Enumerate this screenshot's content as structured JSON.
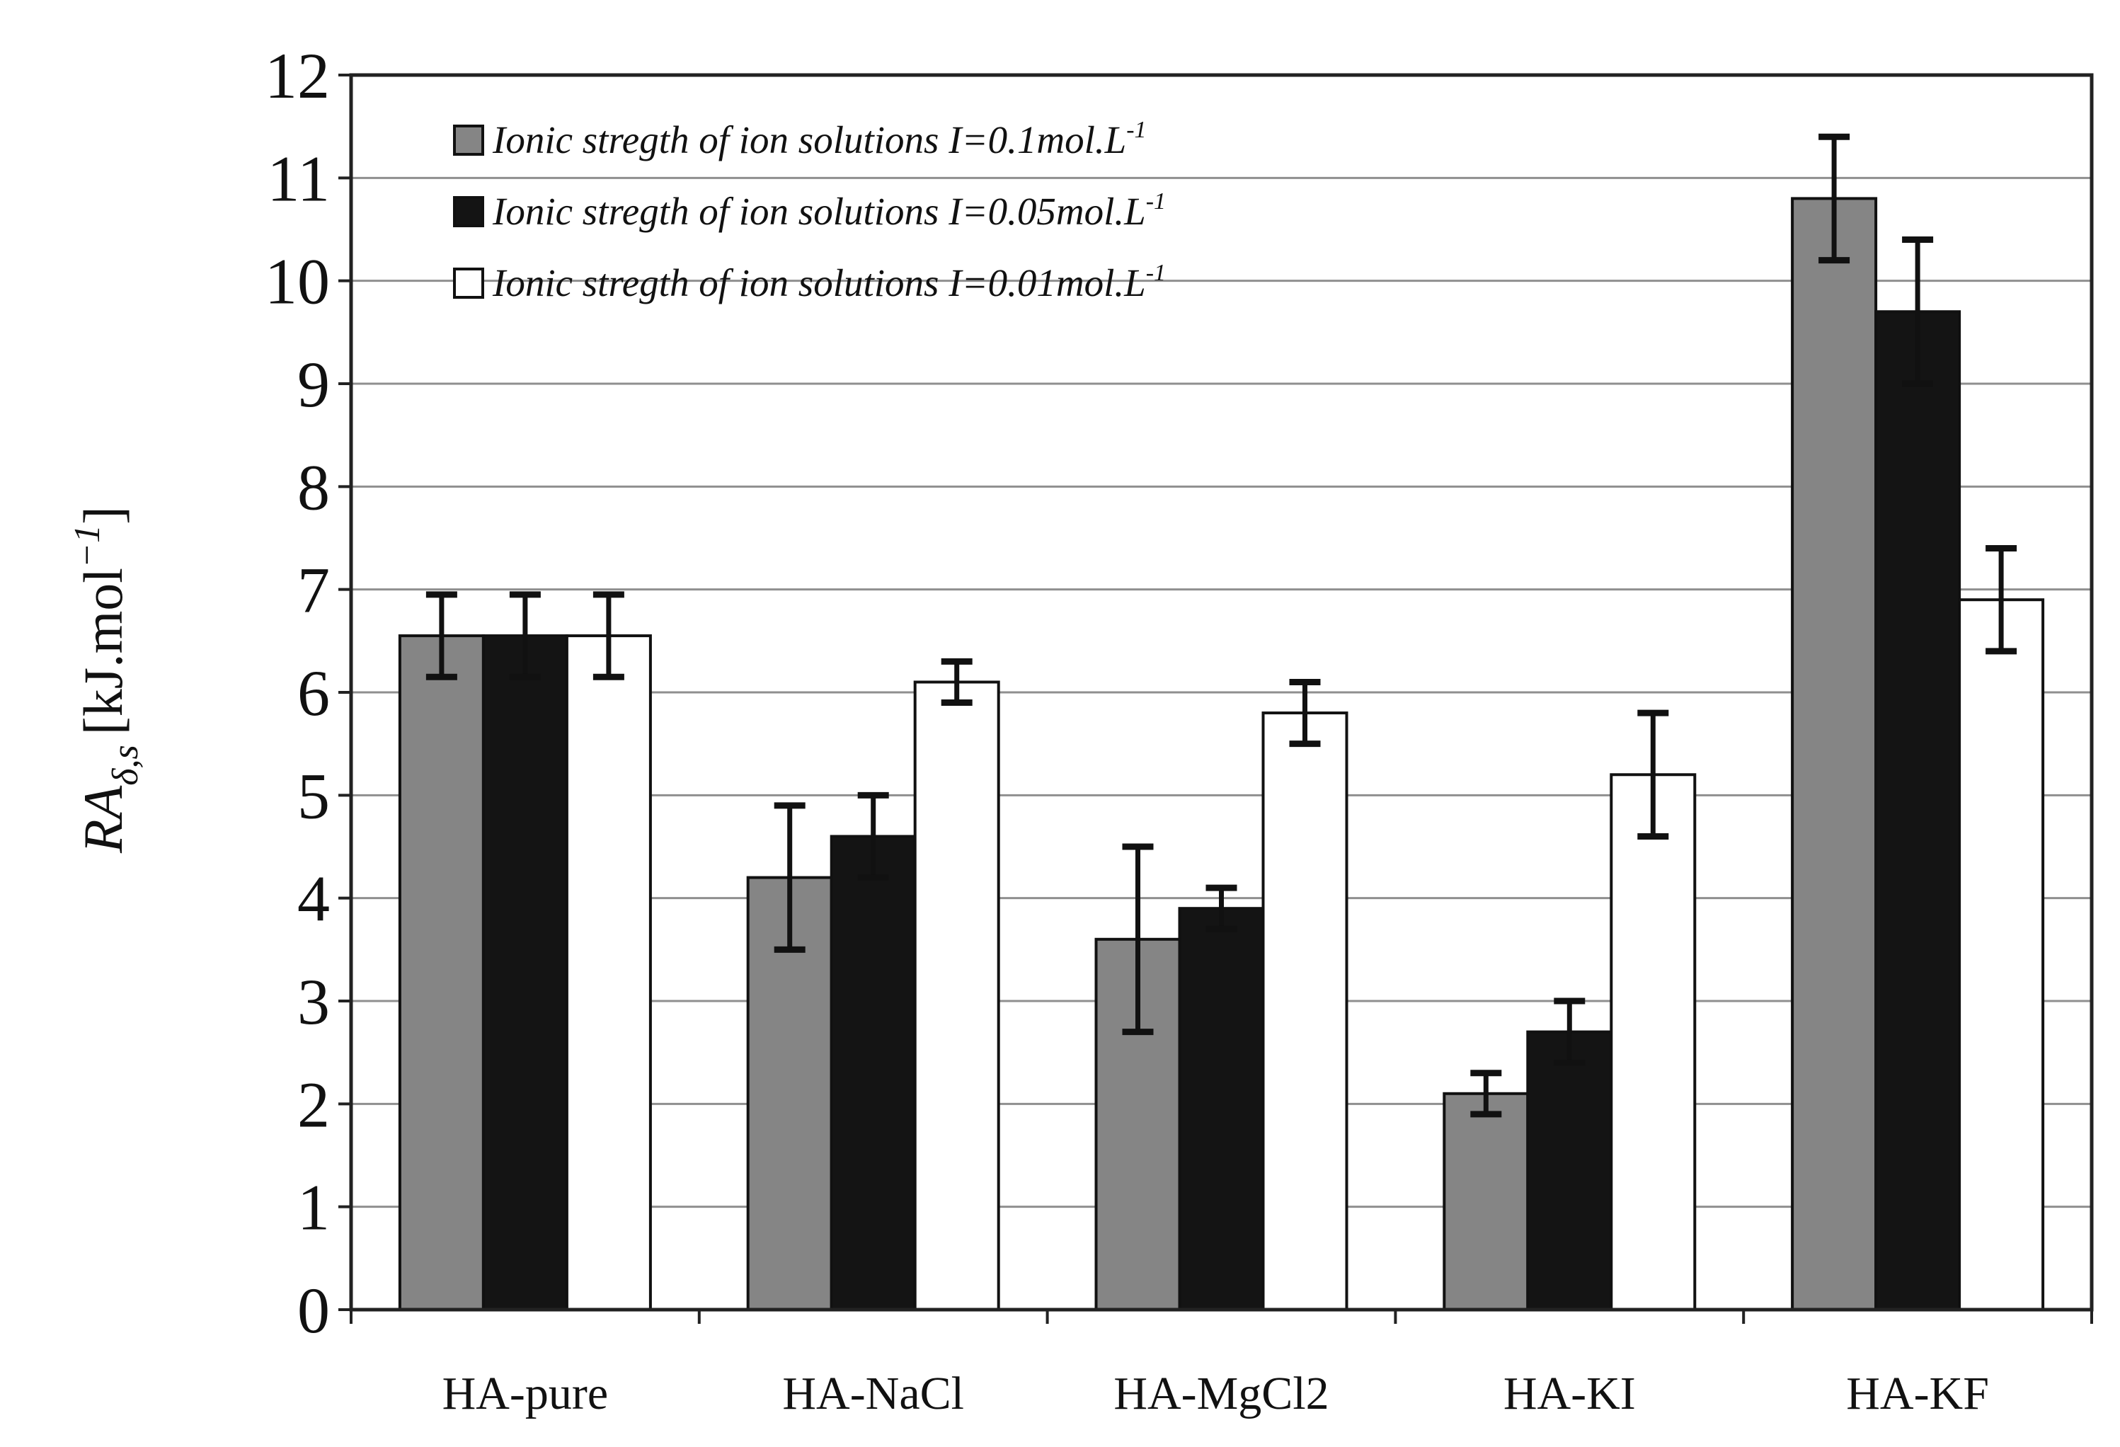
{
  "chart_data": {
    "type": "bar",
    "title": "",
    "xlabel": "",
    "ylabel": {
      "main": "RA",
      "subscript": "δ,s",
      "units": "[kJ.mol",
      "exponent": "−1",
      "close": "]"
    },
    "ylim": [
      0,
      12
    ],
    "yticks": [
      "0",
      "1",
      "2",
      "3",
      "4",
      "5",
      "6",
      "7",
      "8",
      "9",
      "10",
      "11",
      "12"
    ],
    "grid": true,
    "legend_position": "top-left",
    "categories": [
      "HA-pure",
      "HA-NaCl",
      "HA-MgCl2",
      "HA-KI",
      "HA-KF"
    ],
    "series": [
      {
        "name": "Ionic stregth of ion solutions I=0.1mol.L",
        "legend_text": "Ionic stregth of ion solutions  I=0.1mol.L",
        "legend_sup": "-1",
        "color": "#858585",
        "values": [
          6.55,
          4.2,
          3.6,
          2.1,
          10.8
        ],
        "errors": [
          0.4,
          0.7,
          0.9,
          0.2,
          0.6
        ]
      },
      {
        "name": "Ionic stregth of ion solutions I=0.05mol.L",
        "legend_text": "Ionic stregth of ion solutions I=0.05mol.L",
        "legend_sup": "-1",
        "color": "#141414",
        "values": [
          6.55,
          4.6,
          3.9,
          2.7,
          9.7
        ],
        "errors": [
          0.4,
          0.4,
          0.2,
          0.3,
          0.7
        ]
      },
      {
        "name": "Ionic stregth of ion solutions I=0.01mol.L",
        "legend_text": "Ionic stregth of ion solutions I=0.01mol.L",
        "legend_sup": "-1",
        "color": "#ffffff",
        "values": [
          6.55,
          6.1,
          5.8,
          5.2,
          6.9
        ],
        "errors": [
          0.4,
          0.2,
          0.3,
          0.6,
          0.5
        ]
      }
    ]
  }
}
